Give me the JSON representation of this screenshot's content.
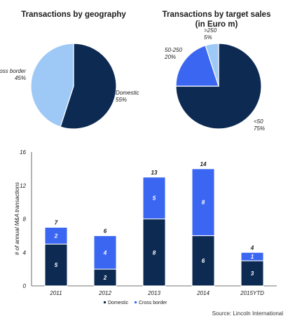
{
  "chart_data": [
    {
      "type": "pie",
      "title": "Transactions by geography",
      "slices": [
        {
          "label": "Domestic",
          "value": 55,
          "value_text": "55%",
          "color": "#0c2a52"
        },
        {
          "label": "Cross border",
          "value": 45,
          "value_text": "45%",
          "color": "#9ec9f7"
        }
      ]
    },
    {
      "type": "pie",
      "title_lines": [
        "Transactions by target sales",
        "(in Euro m)"
      ],
      "slices": [
        {
          "label": "<50",
          "value": 75,
          "value_text": "75%",
          "color": "#0c2a52"
        },
        {
          "label": "50-250",
          "value": 20,
          "value_text": "20%",
          "color": "#3a66f2"
        },
        {
          "label": ">250",
          "value": 5,
          "value_text": "5%",
          "color": "#9ec9f7"
        }
      ]
    },
    {
      "type": "bar",
      "stacked": true,
      "categories": [
        "2011",
        "2012",
        "2013",
        "2014",
        "2015YTD"
      ],
      "series": [
        {
          "name": "Domestic",
          "values": [
            5,
            2,
            8,
            6,
            3
          ],
          "color": "#0c2a52"
        },
        {
          "name": "Cross border",
          "values": [
            2,
            4,
            5,
            8,
            1
          ],
          "color": "#3a66f2"
        }
      ],
      "totals": [
        7,
        6,
        13,
        14,
        4
      ],
      "ylabel": "# of annual M&A transactions",
      "ylim": [
        0,
        16
      ],
      "yticks": [
        0,
        4,
        8,
        12,
        16
      ],
      "legend": "bottom",
      "grid": false
    }
  ],
  "source": "Source: Lincoln International"
}
